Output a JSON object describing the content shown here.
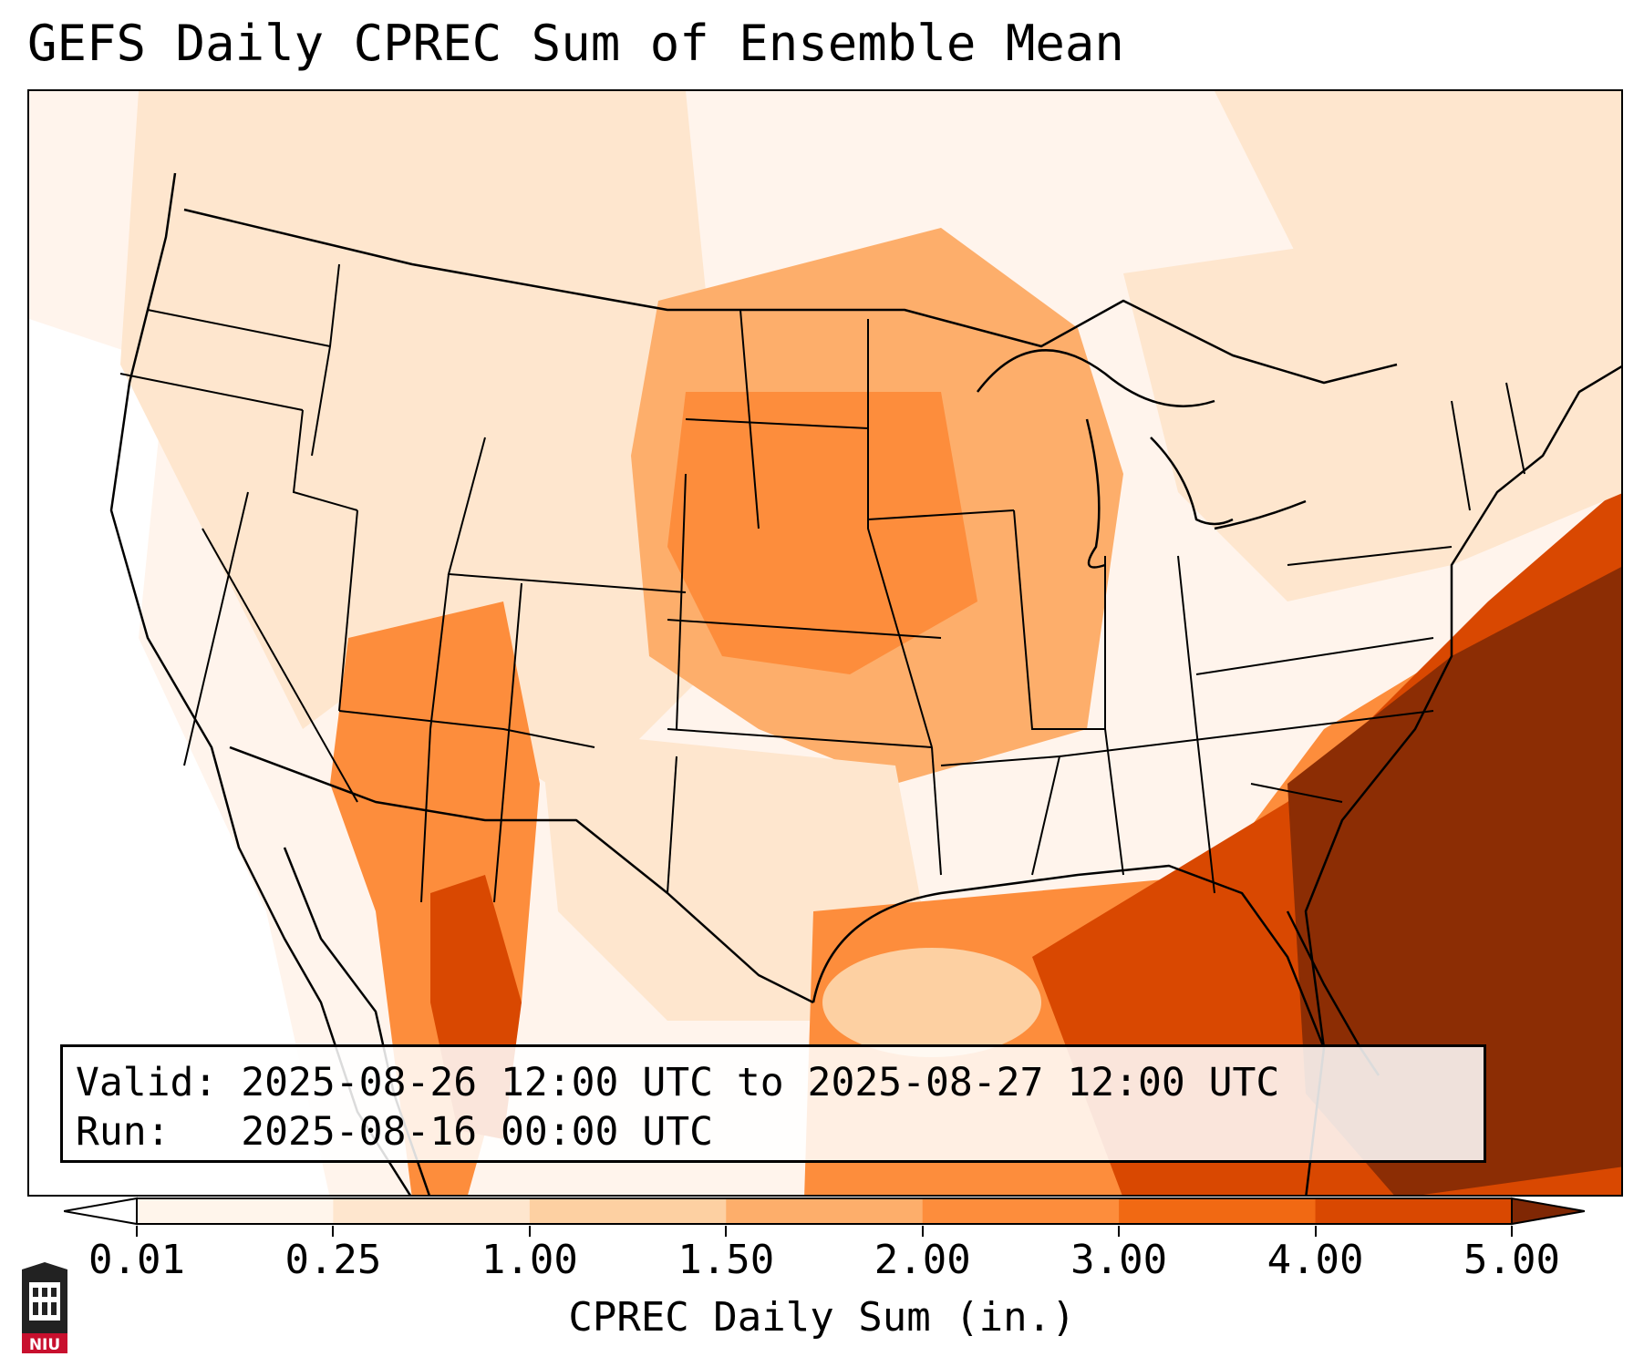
{
  "header": {
    "title": "GEFS Daily CPREC Sum of Ensemble Mean"
  },
  "info": {
    "valid_label": "Valid:",
    "valid_value": "2025-08-26 12:00 UTC to 2025-08-27 12:00 UTC",
    "run_label": "Run:",
    "run_value": "2025-08-16 00:00 UTC"
  },
  "colorbar": {
    "label": "CPREC Daily Sum (in.)",
    "ticks": [
      "0.01",
      "0.25",
      "1.00",
      "1.50",
      "2.00",
      "3.00",
      "4.00",
      "5.00"
    ],
    "colors": [
      "#fff5eb",
      "#fee6ce",
      "#fdd0a2",
      "#fdae6b",
      "#fd8d3c",
      "#f16913",
      "#d94801",
      "#8c2d04"
    ],
    "under_color": "#ffffff",
    "over_color": "#7f2704"
  },
  "logo": {
    "text": "NIU",
    "icon": "university-seal-icon"
  }
}
